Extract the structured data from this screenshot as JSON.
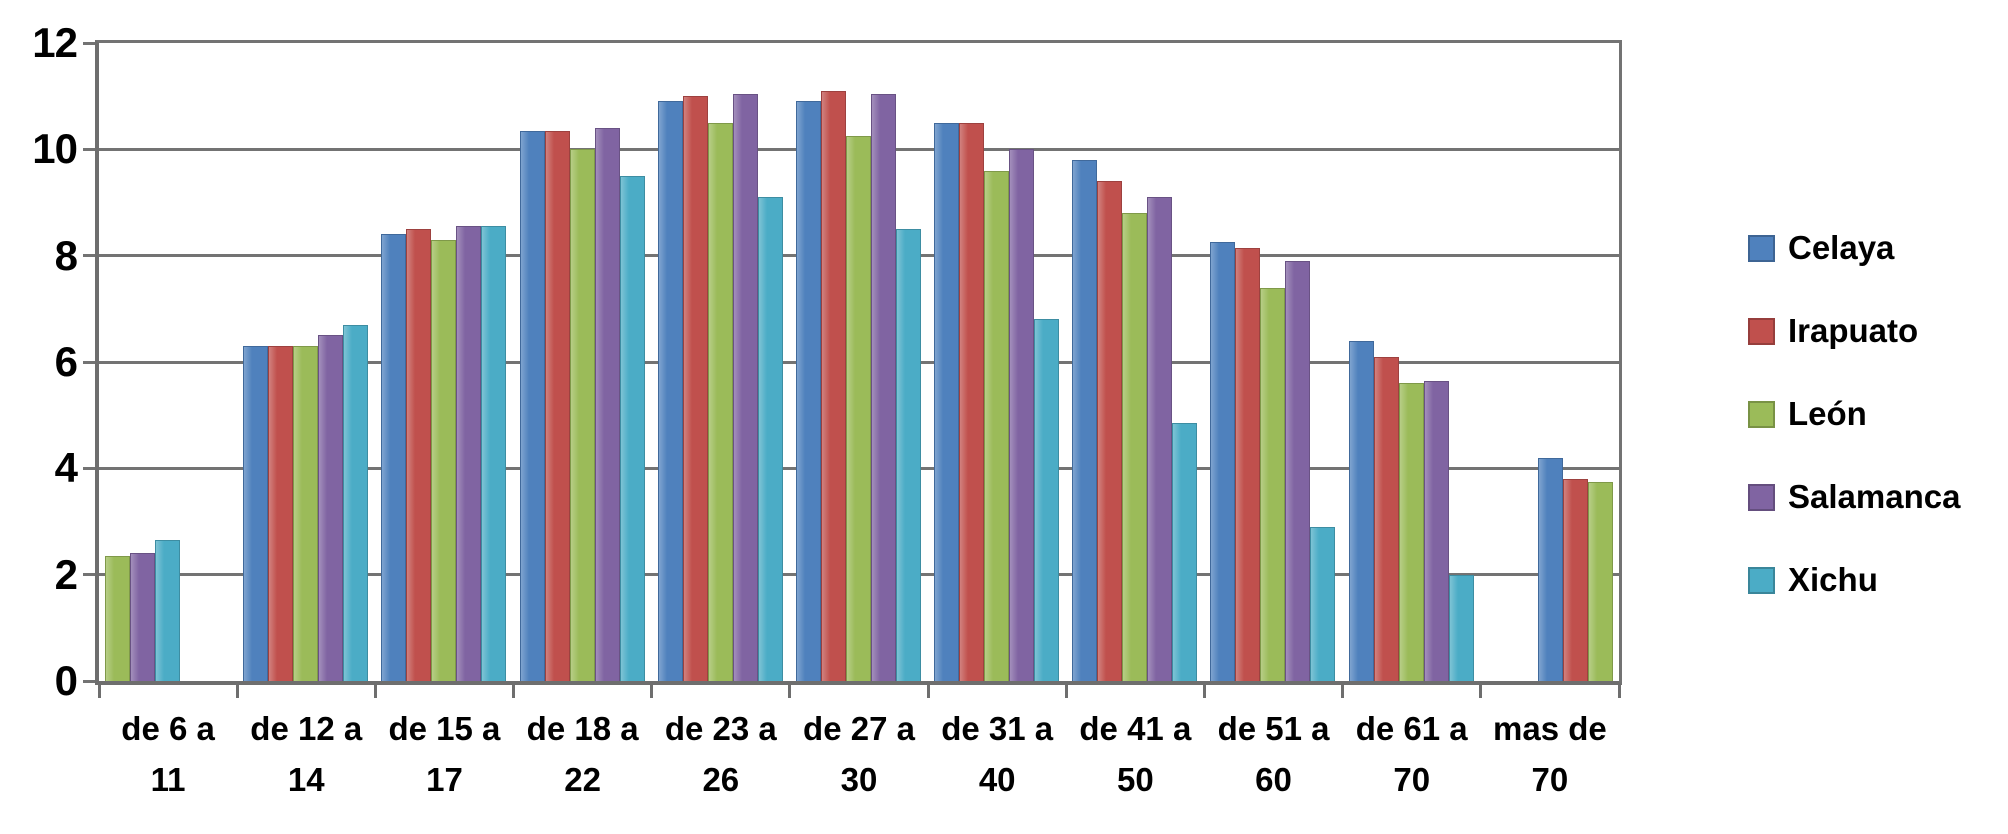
{
  "chart_data": {
    "type": "bar",
    "title": "",
    "xlabel": "",
    "ylabel": "",
    "ylim": [
      0,
      12
    ],
    "yticks": [
      0,
      2,
      4,
      6,
      8,
      10,
      12
    ],
    "grid": true,
    "legend_position": "right",
    "categories": [
      "de 6 a 11",
      "de 12 a 14",
      "de 15 a 17",
      "de 18 a 22",
      "de 23 a 26",
      "de 27 a 30",
      "de 31 a 40",
      "de 41 a 50",
      "de 51 a 60",
      "de 61 a 70",
      "mas de 70"
    ],
    "categories_display": [
      "de 6 a\n11",
      "de 12 a\n14",
      "de 15 a\n17",
      "de 18 a\n22",
      "de 23 a\n26",
      "de 27 a\n30",
      "de 31 a\n40",
      "de 41 a\n50",
      "de 51 a\n60",
      "de 61 a\n70",
      "mas de\n70"
    ],
    "series": [
      {
        "name": "Celaya",
        "color": "#4F81BD",
        "values": [
          null,
          6.3,
          8.4,
          10.35,
          10.9,
          10.9,
          10.5,
          9.8,
          8.25,
          6.4,
          4.2
        ]
      },
      {
        "name": "Irapuato",
        "color": "#C0504D",
        "values": [
          null,
          6.3,
          8.5,
          10.35,
          11.0,
          11.1,
          10.5,
          9.4,
          8.15,
          6.1,
          3.8
        ]
      },
      {
        "name": "León",
        "color": "#9BBB59",
        "values": [
          2.35,
          6.3,
          8.3,
          10.0,
          10.5,
          10.25,
          9.6,
          8.8,
          7.4,
          5.6,
          3.75
        ]
      },
      {
        "name": "Salamanca",
        "color": "#8064A2",
        "values": [
          2.4,
          6.5,
          8.55,
          10.4,
          11.05,
          11.05,
          10.0,
          9.1,
          7.9,
          5.65,
          null
        ]
      },
      {
        "name": "Xichu",
        "color": "#4BACC6",
        "values": [
          2.65,
          6.7,
          8.55,
          9.5,
          9.1,
          8.5,
          6.8,
          4.85,
          2.9,
          2.0,
          null
        ]
      }
    ]
  },
  "axes": {
    "y_tick_labels": [
      "12",
      "10",
      "8",
      "6",
      "4",
      "2",
      "0"
    ]
  },
  "legend": {
    "items": [
      {
        "label": "Celaya",
        "color": "#4F81BD"
      },
      {
        "label": "Irapuato",
        "color": "#C0504D"
      },
      {
        "label": "León",
        "color": "#9BBB59"
      },
      {
        "label": "Salamanca",
        "color": "#8064A2"
      },
      {
        "label": "Xichu",
        "color": "#4BACC6"
      }
    ]
  },
  "colors": {
    "gridline": "#737373",
    "axis": "#6e6e6e",
    "text": "#000000",
    "background": "#ffffff"
  }
}
